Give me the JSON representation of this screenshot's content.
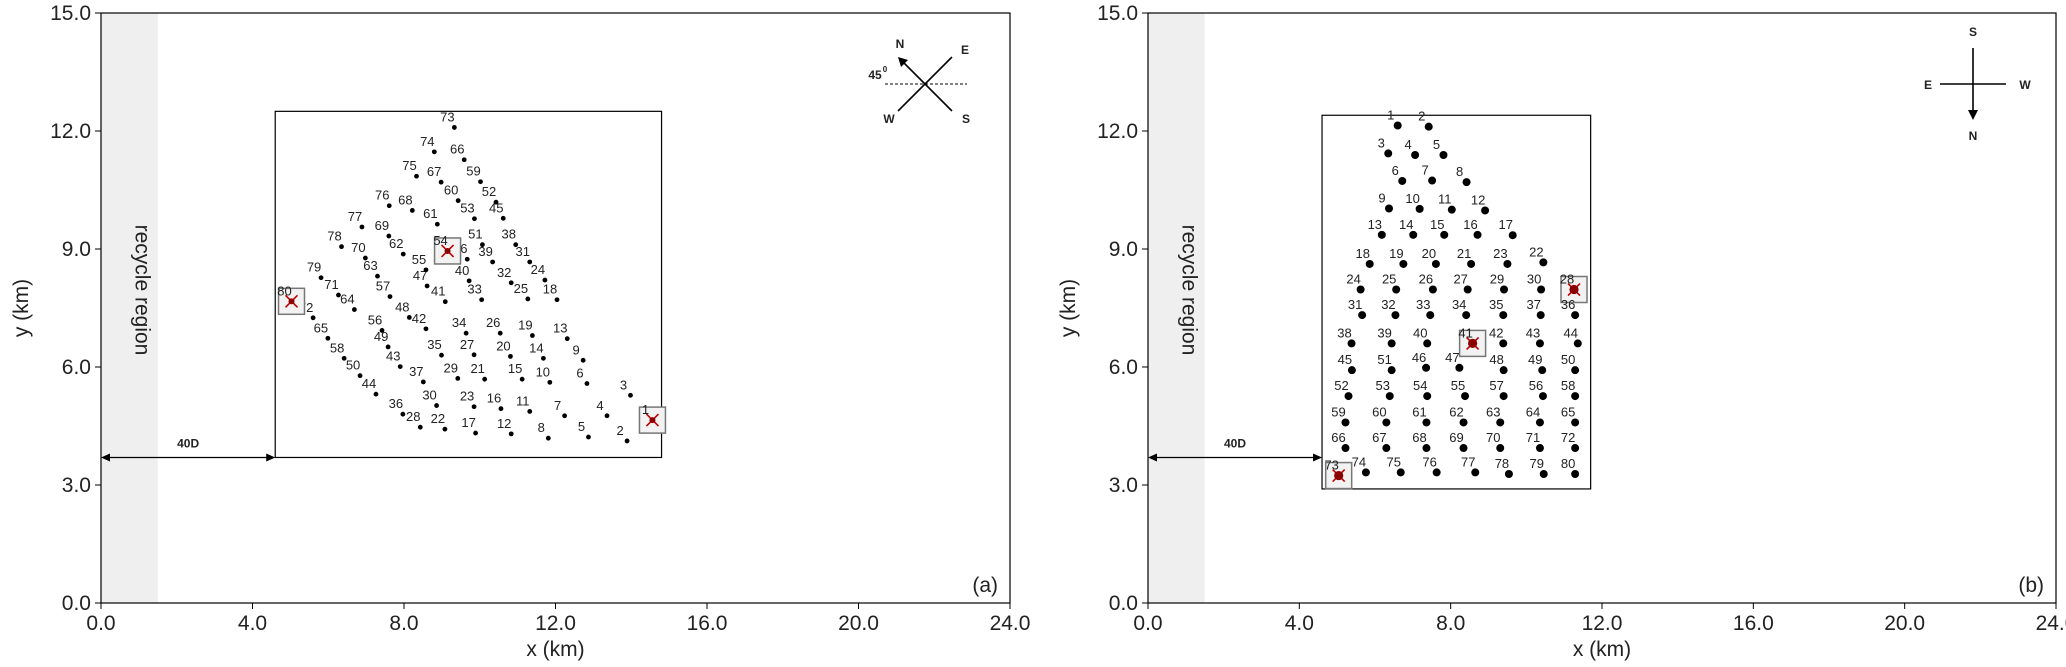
{
  "chart_data": [
    {
      "type": "scatter",
      "panel_label": "(a)",
      "xlabel": "x (km)",
      "ylabel": "y (km)",
      "xlim": [
        0,
        24
      ],
      "ylim": [
        0,
        15
      ],
      "xticks": [
        "0.0",
        "4.0",
        "8.0",
        "12.0",
        "16.0",
        "20.0",
        "24.0"
      ],
      "yticks": [
        "0.0",
        "3.0",
        "6.0",
        "9.0",
        "12.0",
        "15.0"
      ],
      "xtick_values": [
        0,
        4,
        8,
        12,
        16,
        20,
        24
      ],
      "ytick_values": [
        0,
        3,
        6,
        9,
        12,
        15
      ],
      "recycle_region": {
        "label": "recycle region",
        "x": [
          0,
          1.5
        ]
      },
      "farm_box": {
        "x": [
          4.6,
          14.8
        ],
        "y": [
          3.7,
          12.5
        ]
      },
      "distance_arrow": {
        "label": "40D",
        "y": 3.7,
        "x": [
          0,
          4.6
        ]
      },
      "compass": {
        "labels": [
          "N",
          "E",
          "W",
          "S"
        ],
        "angle_label": "45",
        "angle_sup": "0",
        "rotated": true
      },
      "marker_size": "small",
      "turbines": [
        {
          "id": 1,
          "x": 14.56,
          "y": 4.65
        },
        {
          "id": 2,
          "x": 13.89,
          "y": 4.12
        },
        {
          "id": 3,
          "x": 13.98,
          "y": 5.28
        },
        {
          "id": 4,
          "x": 13.36,
          "y": 4.76
        },
        {
          "id": 5,
          "x": 12.87,
          "y": 4.22
        },
        {
          "id": 6,
          "x": 12.83,
          "y": 5.58
        },
        {
          "id": 7,
          "x": 12.24,
          "y": 4.76
        },
        {
          "id": 8,
          "x": 11.81,
          "y": 4.19
        },
        {
          "id": 9,
          "x": 12.73,
          "y": 6.17
        },
        {
          "id": 10,
          "x": 11.85,
          "y": 5.61
        },
        {
          "id": 11,
          "x": 11.32,
          "y": 4.87
        },
        {
          "id": 12,
          "x": 10.83,
          "y": 4.3
        },
        {
          "id": 13,
          "x": 12.31,
          "y": 6.72
        },
        {
          "id": 14,
          "x": 11.68,
          "y": 6.22
        },
        {
          "id": 15,
          "x": 11.12,
          "y": 5.69
        },
        {
          "id": 16,
          "x": 10.56,
          "y": 4.94
        },
        {
          "id": 17,
          "x": 9.89,
          "y": 4.32
        },
        {
          "id": 18,
          "x": 12.04,
          "y": 7.71
        },
        {
          "id": 19,
          "x": 11.39,
          "y": 6.8
        },
        {
          "id": 20,
          "x": 10.81,
          "y": 6.27
        },
        {
          "id": 21,
          "x": 10.13,
          "y": 5.69
        },
        {
          "id": 22,
          "x": 9.08,
          "y": 4.42
        },
        {
          "id": 23,
          "x": 9.85,
          "y": 4.99
        },
        {
          "id": 24,
          "x": 11.72,
          "y": 8.21
        },
        {
          "id": 25,
          "x": 11.27,
          "y": 7.73
        },
        {
          "id": 26,
          "x": 10.54,
          "y": 6.86
        },
        {
          "id": 27,
          "x": 9.85,
          "y": 6.31
        },
        {
          "id": 28,
          "x": 8.43,
          "y": 4.47
        },
        {
          "id": 29,
          "x": 9.42,
          "y": 5.71
        },
        {
          "id": 30,
          "x": 8.86,
          "y": 5.02
        },
        {
          "id": 31,
          "x": 11.32,
          "y": 8.67
        },
        {
          "id": 32,
          "x": 10.83,
          "y": 8.14
        },
        {
          "id": 33,
          "x": 10.05,
          "y": 7.71
        },
        {
          "id": 34,
          "x": 9.64,
          "y": 6.86
        },
        {
          "id": 35,
          "x": 8.99,
          "y": 6.3
        },
        {
          "id": 36,
          "x": 7.97,
          "y": 4.8
        },
        {
          "id": 37,
          "x": 8.51,
          "y": 5.62
        },
        {
          "id": 38,
          "x": 10.95,
          "y": 9.11
        },
        {
          "id": 39,
          "x": 10.34,
          "y": 8.67
        },
        {
          "id": 40,
          "x": 9.72,
          "y": 8.19
        },
        {
          "id": 41,
          "x": 9.09,
          "y": 7.66
        },
        {
          "id": 42,
          "x": 8.58,
          "y": 6.97
        },
        {
          "id": 43,
          "x": 7.9,
          "y": 6.01
        },
        {
          "id": 44,
          "x": 7.26,
          "y": 5.31
        },
        {
          "id": 45,
          "x": 10.62,
          "y": 9.78
        },
        {
          "id": 46,
          "x": 9.67,
          "y": 8.74
        },
        {
          "id": 47,
          "x": 8.61,
          "y": 8.06
        },
        {
          "id": 48,
          "x": 8.14,
          "y": 7.26
        },
        {
          "id": 49,
          "x": 7.58,
          "y": 6.51
        },
        {
          "id": 50,
          "x": 6.84,
          "y": 5.78
        },
        {
          "id": 51,
          "x": 10.07,
          "y": 9.11
        },
        {
          "id": 52,
          "x": 10.43,
          "y": 10.19
        },
        {
          "id": 53,
          "x": 9.86,
          "y": 9.77
        },
        {
          "id": 54,
          "x": 9.15,
          "y": 8.95
        },
        {
          "id": 55,
          "x": 8.58,
          "y": 8.47
        },
        {
          "id": 56,
          "x": 7.42,
          "y": 6.93
        },
        {
          "id": 57,
          "x": 7.63,
          "y": 7.79
        },
        {
          "id": 58,
          "x": 6.42,
          "y": 6.22
        },
        {
          "id": 59,
          "x": 10.02,
          "y": 10.71
        },
        {
          "id": 60,
          "x": 9.43,
          "y": 10.23
        },
        {
          "id": 61,
          "x": 8.88,
          "y": 9.63
        },
        {
          "id": 62,
          "x": 7.98,
          "y": 8.87
        },
        {
          "id": 63,
          "x": 7.3,
          "y": 8.31
        },
        {
          "id": 64,
          "x": 6.69,
          "y": 7.46
        },
        {
          "id": 65,
          "x": 5.99,
          "y": 6.73
        },
        {
          "id": 66,
          "x": 9.59,
          "y": 11.27
        },
        {
          "id": 67,
          "x": 8.98,
          "y": 10.7
        },
        {
          "id": 68,
          "x": 8.22,
          "y": 9.98
        },
        {
          "id": 69,
          "x": 7.6,
          "y": 9.33
        },
        {
          "id": 70,
          "x": 6.98,
          "y": 8.77
        },
        {
          "id": 71,
          "x": 6.27,
          "y": 7.83
        },
        {
          "id": 72,
          "x": 5.6,
          "y": 7.25
        },
        {
          "id": 73,
          "x": 9.33,
          "y": 12.09
        },
        {
          "id": 74,
          "x": 8.8,
          "y": 11.47
        },
        {
          "id": 75,
          "x": 8.33,
          "y": 10.85
        },
        {
          "id": 76,
          "x": 7.61,
          "y": 10.1
        },
        {
          "id": 77,
          "x": 6.89,
          "y": 9.56
        },
        {
          "id": 78,
          "x": 6.35,
          "y": 9.06
        },
        {
          "id": 79,
          "x": 5.81,
          "y": 8.27
        },
        {
          "id": 80,
          "x": 5.03,
          "y": 7.67
        }
      ],
      "highlighted": [
        1,
        54,
        80
      ]
    },
    {
      "type": "scatter",
      "panel_label": "(b)",
      "xlabel": "x (km)",
      "ylabel": "y (km)",
      "xlim": [
        0,
        24
      ],
      "ylim": [
        0,
        15
      ],
      "xticks": [
        "0.0",
        "4.0",
        "8.0",
        "12.0",
        "16.0",
        "20.0",
        "24.0"
      ],
      "yticks": [
        "0.0",
        "3.0",
        "6.0",
        "9.0",
        "12.0",
        "15.0"
      ],
      "xtick_values": [
        0,
        4,
        8,
        12,
        16,
        20,
        24
      ],
      "ytick_values": [
        0,
        3,
        6,
        9,
        12,
        15
      ],
      "recycle_region": {
        "label": "recycle region",
        "x": [
          0,
          1.5
        ]
      },
      "farm_box": {
        "x": [
          4.6,
          11.7
        ],
        "y": [
          2.9,
          12.4
        ]
      },
      "distance_arrow": {
        "label": "40D",
        "y": 3.7,
        "x": [
          0,
          4.6
        ]
      },
      "compass": {
        "labels": [
          "S",
          "E",
          "W",
          "N"
        ],
        "rotated": false
      },
      "marker_size": "large",
      "turbines": [
        {
          "id": 1,
          "x": 6.6,
          "y": 12.14
        },
        {
          "id": 2,
          "x": 7.42,
          "y": 12.11
        },
        {
          "id": 3,
          "x": 6.35,
          "y": 11.43
        },
        {
          "id": 4,
          "x": 7.06,
          "y": 11.39
        },
        {
          "id": 5,
          "x": 7.81,
          "y": 11.39
        },
        {
          "id": 6,
          "x": 6.72,
          "y": 10.73
        },
        {
          "id": 7,
          "x": 7.51,
          "y": 10.74
        },
        {
          "id": 8,
          "x": 8.42,
          "y": 10.7
        },
        {
          "id": 9,
          "x": 6.37,
          "y": 10.03
        },
        {
          "id": 10,
          "x": 7.18,
          "y": 10.02
        },
        {
          "id": 11,
          "x": 8.03,
          "y": 10.0
        },
        {
          "id": 12,
          "x": 8.91,
          "y": 9.98
        },
        {
          "id": 13,
          "x": 6.18,
          "y": 9.36
        },
        {
          "id": 14,
          "x": 7.01,
          "y": 9.36
        },
        {
          "id": 15,
          "x": 7.83,
          "y": 9.36
        },
        {
          "id": 16,
          "x": 8.71,
          "y": 9.36
        },
        {
          "id": 17,
          "x": 9.64,
          "y": 9.35
        },
        {
          "id": 18,
          "x": 5.86,
          "y": 8.62
        },
        {
          "id": 19,
          "x": 6.75,
          "y": 8.62
        },
        {
          "id": 20,
          "x": 7.61,
          "y": 8.62
        },
        {
          "id": 21,
          "x": 8.54,
          "y": 8.62
        },
        {
          "id": 22,
          "x": 10.45,
          "y": 8.66
        },
        {
          "id": 23,
          "x": 9.5,
          "y": 8.62
        },
        {
          "id": 24,
          "x": 5.62,
          "y": 7.97
        },
        {
          "id": 25,
          "x": 6.56,
          "y": 7.97
        },
        {
          "id": 26,
          "x": 7.53,
          "y": 7.97
        },
        {
          "id": 27,
          "x": 8.45,
          "y": 7.97
        },
        {
          "id": 28,
          "x": 11.26,
          "y": 7.97
        },
        {
          "id": 29,
          "x": 9.41,
          "y": 7.97
        },
        {
          "id": 30,
          "x": 10.39,
          "y": 7.97
        },
        {
          "id": 31,
          "x": 5.66,
          "y": 7.32
        },
        {
          "id": 32,
          "x": 6.54,
          "y": 7.32
        },
        {
          "id": 33,
          "x": 7.46,
          "y": 7.32
        },
        {
          "id": 34,
          "x": 8.41,
          "y": 7.32
        },
        {
          "id": 35,
          "x": 9.39,
          "y": 7.32
        },
        {
          "id": 36,
          "x": 11.29,
          "y": 7.32
        },
        {
          "id": 37,
          "x": 10.38,
          "y": 7.32
        },
        {
          "id": 38,
          "x": 5.38,
          "y": 6.6
        },
        {
          "id": 39,
          "x": 6.44,
          "y": 6.6
        },
        {
          "id": 40,
          "x": 7.38,
          "y": 6.6
        },
        {
          "id": 41,
          "x": 8.58,
          "y": 6.6
        },
        {
          "id": 42,
          "x": 9.39,
          "y": 6.6
        },
        {
          "id": 43,
          "x": 10.36,
          "y": 6.6
        },
        {
          "id": 44,
          "x": 11.36,
          "y": 6.6
        },
        {
          "id": 45,
          "x": 5.39,
          "y": 5.92
        },
        {
          "id": 46,
          "x": 7.35,
          "y": 5.98
        },
        {
          "id": 47,
          "x": 8.23,
          "y": 5.98
        },
        {
          "id": 48,
          "x": 9.4,
          "y": 5.92
        },
        {
          "id": 49,
          "x": 10.42,
          "y": 5.92
        },
        {
          "id": 50,
          "x": 11.29,
          "y": 5.92
        },
        {
          "id": 51,
          "x": 6.44,
          "y": 5.92
        },
        {
          "id": 52,
          "x": 5.3,
          "y": 5.26
        },
        {
          "id": 53,
          "x": 6.39,
          "y": 5.26
        },
        {
          "id": 54,
          "x": 7.38,
          "y": 5.26
        },
        {
          "id": 55,
          "x": 8.38,
          "y": 5.26
        },
        {
          "id": 56,
          "x": 10.44,
          "y": 5.26
        },
        {
          "id": 57,
          "x": 9.4,
          "y": 5.26
        },
        {
          "id": 58,
          "x": 11.29,
          "y": 5.26
        },
        {
          "id": 59,
          "x": 5.22,
          "y": 4.59
        },
        {
          "id": 60,
          "x": 6.3,
          "y": 4.59
        },
        {
          "id": 61,
          "x": 7.36,
          "y": 4.59
        },
        {
          "id": 62,
          "x": 8.34,
          "y": 4.59
        },
        {
          "id": 63,
          "x": 9.31,
          "y": 4.59
        },
        {
          "id": 64,
          "x": 10.36,
          "y": 4.59
        },
        {
          "id": 65,
          "x": 11.29,
          "y": 4.59
        },
        {
          "id": 66,
          "x": 5.22,
          "y": 3.94
        },
        {
          "id": 67,
          "x": 6.3,
          "y": 3.94
        },
        {
          "id": 68,
          "x": 7.36,
          "y": 3.94
        },
        {
          "id": 69,
          "x": 8.34,
          "y": 3.94
        },
        {
          "id": 70,
          "x": 9.31,
          "y": 3.94
        },
        {
          "id": 71,
          "x": 10.36,
          "y": 3.94
        },
        {
          "id": 72,
          "x": 11.29,
          "y": 3.94
        },
        {
          "id": 73,
          "x": 5.04,
          "y": 3.24
        },
        {
          "id": 74,
          "x": 5.76,
          "y": 3.32
        },
        {
          "id": 75,
          "x": 6.68,
          "y": 3.32
        },
        {
          "id": 76,
          "x": 7.63,
          "y": 3.32
        },
        {
          "id": 77,
          "x": 8.65,
          "y": 3.32
        },
        {
          "id": 78,
          "x": 9.54,
          "y": 3.28
        },
        {
          "id": 79,
          "x": 10.46,
          "y": 3.28
        },
        {
          "id": 80,
          "x": 11.29,
          "y": 3.28
        }
      ],
      "highlighted": [
        28,
        41,
        73
      ]
    }
  ]
}
